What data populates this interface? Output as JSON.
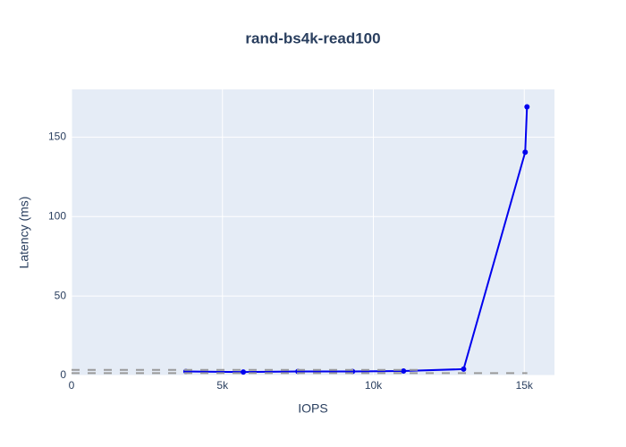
{
  "chart_data": {
    "type": "line",
    "title": "rand-bs4k-read100",
    "x_label": "IOPS",
    "y_label": "Latency (ms)",
    "xlim": [
      0,
      16000
    ],
    "ylim": [
      0,
      180
    ],
    "xticks": [
      0,
      {
        "value": 5000,
        "label": "5k"
      },
      {
        "value": 10000,
        "label": "10k"
      },
      {
        "value": 15000,
        "label": "15k"
      }
    ],
    "yticks": [
      0,
      50,
      100,
      150
    ],
    "grid": true,
    "series": [
      {
        "color": "#0000ee",
        "style": "solid",
        "markers": true,
        "x": [
          3790,
          5690,
          7500,
          9310,
          11000,
          12990,
          15030,
          15090
        ],
        "values": [
          2.5,
          2.2,
          2.5,
          2.5,
          2.8,
          4,
          140.5,
          169
        ]
      },
      {
        "color": "#9a9a9a",
        "style": "dashed",
        "markers": false,
        "x": [
          0,
          11500
        ],
        "values": [
          3.5,
          3.5
        ]
      },
      {
        "color": "#9a9a9a",
        "style": "dashed",
        "markers": false,
        "x": [
          0,
          15100
        ],
        "values": [
          1.5,
          1.5
        ]
      }
    ]
  }
}
